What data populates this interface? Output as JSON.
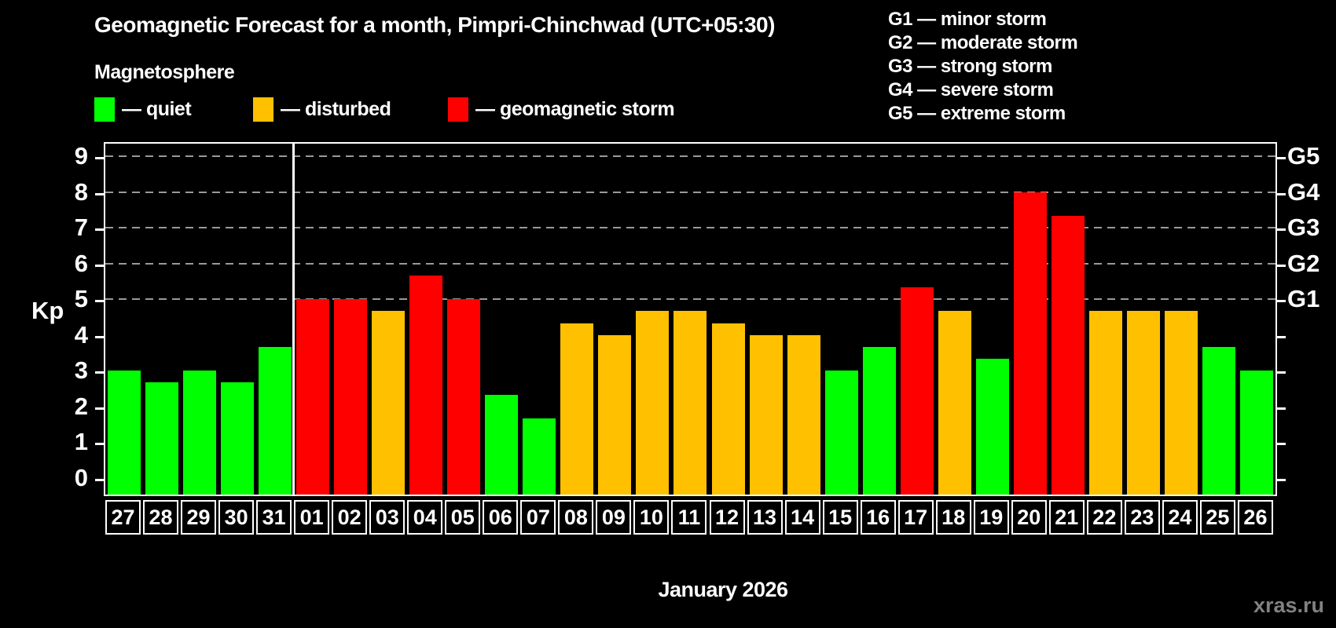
{
  "title": "Geomagnetic Forecast for a month, Pimpri-Chinchwad (UTC+05:30)",
  "subtitle": "Magnetosphere",
  "legend": {
    "items": [
      {
        "key": "quiet",
        "label": "— quiet",
        "color": "#00ff00"
      },
      {
        "key": "disturbed",
        "label": "— disturbed",
        "color": "#ffc000"
      },
      {
        "key": "storm",
        "label": "— geomagnetic storm",
        "color": "#ff0000"
      }
    ]
  },
  "g_legend": [
    "G1 — minor storm",
    "G2 — moderate storm",
    "G3 — strong storm",
    "G4 — severe storm",
    "G5 — extreme storm"
  ],
  "watermark": "xras.ru",
  "chart_data": {
    "type": "bar",
    "title": "Geomagnetic Forecast for a month, Pimpri-Chinchwad (UTC+05:30)",
    "subtitle": "Magnetosphere",
    "xlabel": "January 2026",
    "ylabel": "Kp",
    "ylim": [
      0,
      9
    ],
    "yticks": [
      0,
      1,
      2,
      3,
      4,
      5,
      6,
      7,
      8,
      9
    ],
    "gridlines_at": [
      5,
      6,
      7,
      8,
      9
    ],
    "grid": "dashed horizontal at G-storm levels only",
    "legend_position": "top",
    "right_axis": [
      {
        "kp": 5,
        "label": "G1"
      },
      {
        "kp": 6,
        "label": "G2"
      },
      {
        "kp": 7,
        "label": "G3"
      },
      {
        "kp": 8,
        "label": "G4"
      },
      {
        "kp": 9,
        "label": "G5"
      }
    ],
    "status_colors": {
      "quiet": "#00ff00",
      "disturbed": "#ffc000",
      "storm": "#ff0000"
    },
    "month_separator_after_index": 4,
    "categories": [
      "27",
      "28",
      "29",
      "30",
      "31",
      "01",
      "02",
      "03",
      "04",
      "05",
      "06",
      "07",
      "08",
      "09",
      "10",
      "11",
      "12",
      "13",
      "14",
      "15",
      "16",
      "17",
      "18",
      "19",
      "20",
      "21",
      "22",
      "23",
      "24",
      "25",
      "26"
    ],
    "days": [
      {
        "day": "27",
        "kp": 3.0,
        "status": "quiet"
      },
      {
        "day": "28",
        "kp": 2.67,
        "status": "quiet"
      },
      {
        "day": "29",
        "kp": 3.0,
        "status": "quiet"
      },
      {
        "day": "30",
        "kp": 2.67,
        "status": "quiet"
      },
      {
        "day": "31",
        "kp": 3.67,
        "status": "quiet"
      },
      {
        "day": "01",
        "kp": 5.0,
        "status": "storm"
      },
      {
        "day": "02",
        "kp": 5.0,
        "status": "storm"
      },
      {
        "day": "03",
        "kp": 4.67,
        "status": "disturbed"
      },
      {
        "day": "04",
        "kp": 5.67,
        "status": "storm"
      },
      {
        "day": "05",
        "kp": 5.0,
        "status": "storm"
      },
      {
        "day": "06",
        "kp": 2.33,
        "status": "quiet"
      },
      {
        "day": "07",
        "kp": 1.67,
        "status": "quiet"
      },
      {
        "day": "08",
        "kp": 4.33,
        "status": "disturbed"
      },
      {
        "day": "09",
        "kp": 4.0,
        "status": "disturbed"
      },
      {
        "day": "10",
        "kp": 4.67,
        "status": "disturbed"
      },
      {
        "day": "11",
        "kp": 4.67,
        "status": "disturbed"
      },
      {
        "day": "12",
        "kp": 4.33,
        "status": "disturbed"
      },
      {
        "day": "13",
        "kp": 4.0,
        "status": "disturbed"
      },
      {
        "day": "14",
        "kp": 4.0,
        "status": "disturbed"
      },
      {
        "day": "15",
        "kp": 3.0,
        "status": "quiet"
      },
      {
        "day": "16",
        "kp": 3.67,
        "status": "quiet"
      },
      {
        "day": "17",
        "kp": 5.33,
        "status": "storm"
      },
      {
        "day": "18",
        "kp": 4.67,
        "status": "disturbed"
      },
      {
        "day": "19",
        "kp": 3.33,
        "status": "quiet"
      },
      {
        "day": "20",
        "kp": 8.0,
        "status": "storm"
      },
      {
        "day": "21",
        "kp": 7.33,
        "status": "storm"
      },
      {
        "day": "22",
        "kp": 4.67,
        "status": "disturbed"
      },
      {
        "day": "23",
        "kp": 4.67,
        "status": "disturbed"
      },
      {
        "day": "24",
        "kp": 4.67,
        "status": "disturbed"
      },
      {
        "day": "25",
        "kp": 3.67,
        "status": "quiet"
      },
      {
        "day": "26",
        "kp": 3.0,
        "status": "quiet"
      }
    ]
  }
}
